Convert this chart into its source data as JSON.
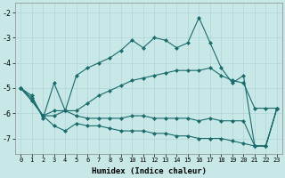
{
  "xlabel": "Humidex (Indice chaleur)",
  "background_color": "#c8e8e8",
  "grid_color": "#b0d4d4",
  "line_color": "#1a6b6b",
  "xlim": [
    -0.5,
    23.5
  ],
  "ylim": [
    -7.6,
    -1.6
  ],
  "yticks": [
    -7,
    -6,
    -5,
    -4,
    -3,
    -2
  ],
  "xticks": [
    0,
    1,
    2,
    3,
    4,
    5,
    6,
    7,
    8,
    9,
    10,
    11,
    12,
    13,
    14,
    15,
    16,
    17,
    18,
    19,
    20,
    21,
    22,
    23
  ],
  "series": [
    {
      "x": [
        0,
        1,
        2,
        3,
        4,
        5,
        6,
        7,
        8,
        9,
        10,
        11,
        12,
        13,
        14,
        15,
        16,
        17,
        18,
        19,
        20,
        21,
        22,
        23
      ],
      "y": [
        -5.0,
        -5.3,
        -6.2,
        -4.8,
        -5.9,
        -4.5,
        -4.2,
        -4.0,
        -3.8,
        -3.5,
        -3.1,
        -3.4,
        -3.0,
        -3.1,
        -3.4,
        -3.2,
        -2.2,
        -3.2,
        -4.2,
        -4.8,
        -4.5,
        -7.3,
        -7.3,
        -5.8
      ]
    },
    {
      "x": [
        0,
        1,
        2,
        3,
        4,
        5,
        6,
        7,
        8,
        9,
        10,
        11,
        12,
        13,
        14,
        15,
        16,
        17,
        18,
        19,
        20,
        21,
        22,
        23
      ],
      "y": [
        -5.0,
        -5.4,
        -6.1,
        -5.9,
        -5.9,
        -5.9,
        -5.6,
        -5.3,
        -5.1,
        -4.9,
        -4.7,
        -4.6,
        -4.5,
        -4.4,
        -4.3,
        -4.3,
        -4.3,
        -4.2,
        -4.5,
        -4.7,
        -4.8,
        -5.8,
        -5.8,
        -5.8
      ]
    },
    {
      "x": [
        0,
        1,
        2,
        3,
        4,
        5,
        6,
        7,
        8,
        9,
        10,
        11,
        12,
        13,
        14,
        15,
        16,
        17,
        18,
        19,
        20,
        21,
        22,
        23
      ],
      "y": [
        -5.0,
        -5.5,
        -6.1,
        -6.1,
        -5.9,
        -6.1,
        -6.2,
        -6.2,
        -6.2,
        -6.2,
        -6.1,
        -6.1,
        -6.2,
        -6.2,
        -6.2,
        -6.2,
        -6.3,
        -6.2,
        -6.3,
        -6.3,
        -6.3,
        -7.3,
        -7.3,
        -5.8
      ]
    },
    {
      "x": [
        0,
        1,
        2,
        3,
        4,
        5,
        6,
        7,
        8,
        9,
        10,
        11,
        12,
        13,
        14,
        15,
        16,
        17,
        18,
        19,
        20,
        21,
        22,
        23
      ],
      "y": [
        -5.0,
        -5.5,
        -6.1,
        -6.5,
        -6.7,
        -6.4,
        -6.5,
        -6.5,
        -6.6,
        -6.7,
        -6.7,
        -6.7,
        -6.8,
        -6.8,
        -6.9,
        -6.9,
        -7.0,
        -7.0,
        -7.0,
        -7.1,
        -7.2,
        -7.3,
        -7.3,
        -5.8
      ]
    }
  ]
}
